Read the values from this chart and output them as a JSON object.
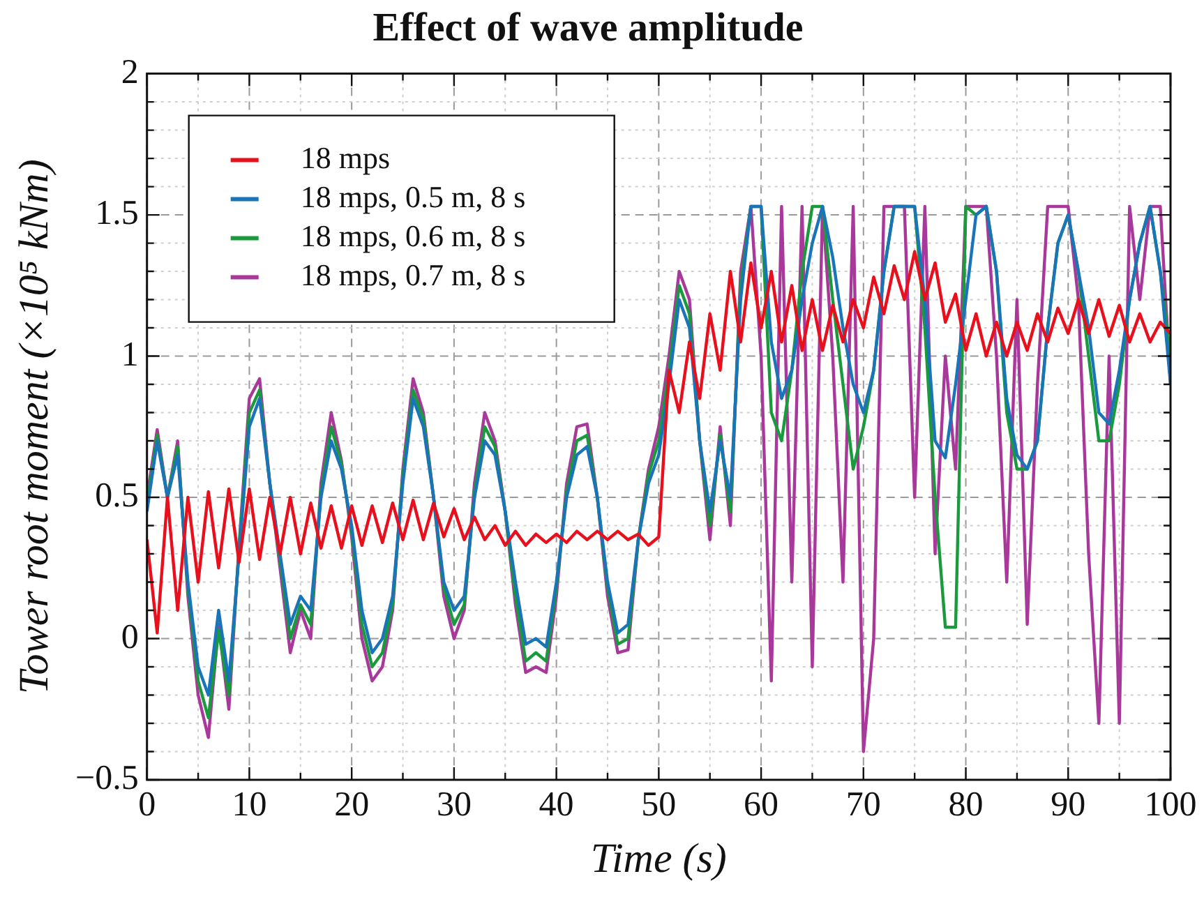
{
  "chart_data": {
    "type": "line",
    "title": "Effect of wave amplitude",
    "xlabel": "Time (s)",
    "ylabel": "Tower root moment (×10⁵ kNm)",
    "x": [
      0,
      1,
      2,
      3,
      4,
      5,
      6,
      7,
      8,
      9,
      10,
      11,
      12,
      13,
      14,
      15,
      16,
      17,
      18,
      19,
      20,
      21,
      22,
      23,
      24,
      25,
      26,
      27,
      28,
      29,
      30,
      31,
      32,
      33,
      34,
      35,
      36,
      37,
      38,
      39,
      40,
      41,
      42,
      43,
      44,
      45,
      46,
      47,
      48,
      49,
      50,
      51,
      52,
      53,
      54,
      55,
      56,
      57,
      58,
      59,
      60,
      61,
      62,
      63,
      64,
      65,
      66,
      67,
      68,
      69,
      70,
      71,
      72,
      73,
      74,
      75,
      76,
      77,
      78,
      79,
      80,
      81,
      82,
      83,
      84,
      85,
      86,
      87,
      88,
      89,
      90,
      91,
      92,
      93,
      94,
      95,
      96,
      97,
      98,
      99,
      100
    ],
    "series": [
      {
        "name": "18 mps",
        "color": "#e8101c",
        "values": [
          0.35,
          0.02,
          0.5,
          0.1,
          0.5,
          0.2,
          0.52,
          0.25,
          0.53,
          0.27,
          0.53,
          0.28,
          0.5,
          0.3,
          0.5,
          0.3,
          0.48,
          0.32,
          0.47,
          0.32,
          0.47,
          0.33,
          0.47,
          0.34,
          0.48,
          0.35,
          0.49,
          0.35,
          0.48,
          0.36,
          0.46,
          0.35,
          0.43,
          0.35,
          0.4,
          0.33,
          0.38,
          0.33,
          0.37,
          0.34,
          0.37,
          0.34,
          0.38,
          0.35,
          0.38,
          0.35,
          0.38,
          0.35,
          0.37,
          0.33,
          0.36,
          0.95,
          0.8,
          1.05,
          0.85,
          1.15,
          0.95,
          1.3,
          1.05,
          1.33,
          1.1,
          1.3,
          1.05,
          1.25,
          1.02,
          1.2,
          1.02,
          1.18,
          1.05,
          1.2,
          1.1,
          1.28,
          1.15,
          1.32,
          1.2,
          1.37,
          1.2,
          1.33,
          1.12,
          1.22,
          1.02,
          1.15,
          1.0,
          1.12,
          1.0,
          1.12,
          1.02,
          1.15,
          1.05,
          1.17,
          1.08,
          1.2,
          1.08,
          1.2,
          1.07,
          1.18,
          1.05,
          1.15,
          1.05,
          1.12,
          1.08
        ]
      },
      {
        "name": "18 mps, 0.5 m, 8 s",
        "color": "#1a74b8",
        "values": [
          0.45,
          0.7,
          0.5,
          0.65,
          0.2,
          -0.1,
          -0.2,
          0.1,
          -0.15,
          0.3,
          0.75,
          0.85,
          0.55,
          0.3,
          0.05,
          0.15,
          0.1,
          0.5,
          0.7,
          0.6,
          0.4,
          0.1,
          -0.05,
          0.0,
          0.15,
          0.55,
          0.85,
          0.75,
          0.5,
          0.2,
          0.1,
          0.15,
          0.5,
          0.7,
          0.65,
          0.45,
          0.2,
          -0.02,
          0.0,
          -0.03,
          0.2,
          0.5,
          0.65,
          0.68,
          0.5,
          0.2,
          0.02,
          0.05,
          0.35,
          0.55,
          0.65,
          0.9,
          1.2,
          1.1,
          0.7,
          0.45,
          0.7,
          0.5,
          1.2,
          1.53,
          1.53,
          1.05,
          0.85,
          0.95,
          1.2,
          1.4,
          1.53,
          1.35,
          1.1,
          0.9,
          0.8,
          0.95,
          1.3,
          1.53,
          1.53,
          1.53,
          1.2,
          0.7,
          0.64,
          0.9,
          1.2,
          1.5,
          1.53,
          1.3,
          0.85,
          0.65,
          0.6,
          0.7,
          1.1,
          1.4,
          1.5,
          1.3,
          1.1,
          0.8,
          0.76,
          0.95,
          1.2,
          1.4,
          1.53,
          1.3,
          0.9
        ]
      },
      {
        "name": "18 mps, 0.6 m, 8 s",
        "color": "#1a9a3c",
        "values": [
          0.48,
          0.72,
          0.5,
          0.68,
          0.18,
          -0.15,
          -0.28,
          0.03,
          -0.2,
          0.32,
          0.8,
          0.88,
          0.55,
          0.28,
          0.0,
          0.12,
          0.05,
          0.52,
          0.75,
          0.62,
          0.38,
          0.05,
          -0.1,
          -0.05,
          0.12,
          0.58,
          0.88,
          0.78,
          0.5,
          0.18,
          0.05,
          0.12,
          0.52,
          0.75,
          0.68,
          0.45,
          0.15,
          -0.08,
          -0.05,
          -0.08,
          0.18,
          0.52,
          0.7,
          0.72,
          0.5,
          0.18,
          -0.02,
          0.0,
          0.35,
          0.58,
          0.7,
          0.95,
          1.25,
          1.15,
          0.7,
          0.4,
          0.72,
          0.45,
          1.25,
          1.53,
          1.53,
          0.8,
          0.7,
          0.95,
          1.3,
          1.53,
          1.53,
          1.2,
          0.9,
          0.6,
          0.75,
          0.95,
          1.3,
          1.53,
          1.53,
          1.53,
          1.1,
          0.5,
          0.04,
          0.04,
          1.53,
          1.5,
          1.53,
          1.3,
          0.8,
          0.6,
          0.6,
          0.7,
          1.1,
          1.4,
          1.5,
          1.3,
          1.0,
          0.7,
          0.7,
          0.9,
          1.2,
          1.4,
          1.53,
          1.3,
          1.0
        ]
      },
      {
        "name": "18 mps, 0.7 m, 8 s",
        "color": "#a8399a",
        "values": [
          0.5,
          0.74,
          0.5,
          0.7,
          0.15,
          -0.2,
          -0.35,
          0.05,
          -0.25,
          0.33,
          0.85,
          0.92,
          0.55,
          0.25,
          -0.05,
          0.1,
          0.0,
          0.55,
          0.8,
          0.63,
          0.36,
          0.0,
          -0.15,
          -0.1,
          0.1,
          0.6,
          0.92,
          0.8,
          0.5,
          0.15,
          0.0,
          0.1,
          0.55,
          0.8,
          0.7,
          0.45,
          0.12,
          -0.12,
          -0.1,
          -0.12,
          0.15,
          0.55,
          0.75,
          0.76,
          0.5,
          0.15,
          -0.05,
          -0.04,
          0.35,
          0.6,
          0.75,
          1.0,
          1.3,
          1.2,
          0.7,
          0.35,
          0.75,
          0.4,
          1.3,
          1.53,
          1.0,
          -0.15,
          1.53,
          0.2,
          1.53,
          -0.1,
          1.53,
          1.0,
          0.2,
          1.53,
          -0.4,
          0.0,
          1.53,
          1.53,
          1.53,
          0.5,
          1.53,
          0.3,
          1.0,
          0.6,
          1.53,
          1.53,
          1.53,
          1.0,
          0.2,
          1.2,
          0.05,
          0.9,
          1.53,
          1.53,
          1.53,
          1.2,
          0.3,
          -0.3,
          1.0,
          -0.3,
          1.53,
          1.2,
          1.53,
          1.53,
          0.9
        ]
      }
    ],
    "xlim": [
      0,
      100
    ],
    "xticks": [
      0,
      {
        "value": 5,
        "label": null
      },
      10,
      {
        "value": 15,
        "label": null
      },
      20,
      {
        "value": 25,
        "label": null
      },
      30,
      {
        "value": 35,
        "label": null
      },
      40,
      {
        "value": 45,
        "label": null
      },
      50,
      {
        "value": 55,
        "label": null
      },
      60,
      {
        "value": 65,
        "label": null
      },
      70,
      {
        "value": 75,
        "label": null
      },
      80,
      {
        "value": 85,
        "label": null
      },
      90,
      {
        "value": 95,
        "label": null
      },
      100
    ],
    "ylim": [
      -0.5,
      2
    ],
    "yticks": [
      {
        "value": -0.5,
        "label": "−0.5"
      },
      {
        "value": -0.4,
        "label": null
      },
      {
        "value": -0.3,
        "label": null
      },
      {
        "value": -0.2,
        "label": null
      },
      {
        "value": -0.1,
        "label": null
      },
      0,
      {
        "value": 0.1,
        "label": null
      },
      {
        "value": 0.2,
        "label": null
      },
      {
        "value": 0.3,
        "label": null
      },
      {
        "value": 0.4,
        "label": null
      },
      0.5,
      {
        "value": 0.6,
        "label": null
      },
      {
        "value": 0.7,
        "label": null
      },
      {
        "value": 0.8,
        "label": null
      },
      {
        "value": 0.9,
        "label": null
      },
      1,
      {
        "value": 1.1,
        "label": null
      },
      {
        "value": 1.2,
        "label": null
      },
      {
        "value": 1.3,
        "label": null
      },
      {
        "value": 1.4,
        "label": null
      },
      1.5,
      {
        "value": 1.6,
        "label": null
      },
      {
        "value": 1.7,
        "label": null
      },
      {
        "value": 1.8,
        "label": null
      },
      {
        "value": 1.9,
        "label": null
      },
      2
    ],
    "grid": true,
    "legend": "top left",
    "marker": "none",
    "line_style": "solid"
  }
}
